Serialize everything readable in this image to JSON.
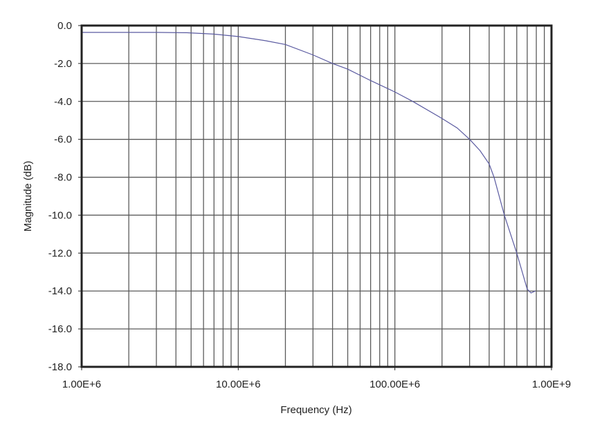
{
  "chart_data": {
    "type": "line",
    "title": "",
    "xlabel": "Frequency (Hz)",
    "ylabel": "Magnitude (dB)",
    "xscale": "log",
    "xlim": [
      1000000,
      1000000000
    ],
    "ylim": [
      -18.0,
      0.0
    ],
    "grid": true,
    "legend": "none",
    "x_tick_labels": [
      "1.00E+6",
      "10.00E+6",
      "100.00E+6",
      "1.00E+9"
    ],
    "x_ticks": [
      1000000,
      10000000,
      100000000,
      1000000000
    ],
    "y_tick_labels": [
      "0.0",
      "-2.0",
      "-4.0",
      "-6.0",
      "-8.0",
      "-10.0",
      "-12.0",
      "-14.0",
      "-16.0",
      "-18.0"
    ],
    "y_ticks": [
      0,
      -2,
      -4,
      -6,
      -8,
      -10,
      -12,
      -14,
      -16,
      -18
    ],
    "series": [
      {
        "name": "Magnitude",
        "color": "#5a5aa0",
        "x": [
          1000000,
          2000000,
          3000000,
          4700000,
          7000000,
          10000000,
          15000000,
          20000000,
          30000000,
          40000000,
          50000000,
          70000000,
          100000000,
          130000000,
          200000000,
          250000000,
          300000000,
          350000000,
          400000000,
          430000000,
          500000000,
          600000000,
          700000000,
          740000000,
          790000000
        ],
        "y": [
          -0.36,
          -0.36,
          -0.36,
          -0.38,
          -0.45,
          -0.58,
          -0.8,
          -1.0,
          -1.55,
          -2.0,
          -2.3,
          -2.9,
          -3.5,
          -4.0,
          -4.9,
          -5.4,
          -6.0,
          -6.6,
          -7.3,
          -8.0,
          -10.0,
          -12.0,
          -13.9,
          -14.1,
          -14.0
        ]
      }
    ]
  }
}
